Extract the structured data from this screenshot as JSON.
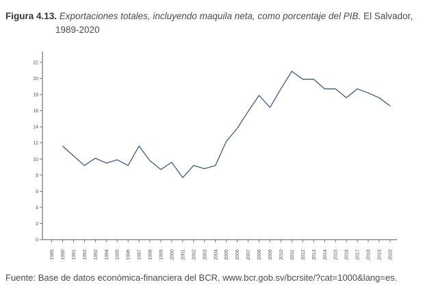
{
  "figure": {
    "label": "Figura 4.13.",
    "title_italic": "Exportaciones totales, incluyendo maquila neta, como porcentaje del PIB.",
    "title_rest": "El Salvador,",
    "title_years": "1989-2020"
  },
  "source": "Fuente: Base de datos económica-financiera del BCR, www.bcr.gob.sv/bcrsite/?cat=1000&lang=es.",
  "colors": {
    "line": "#3d5a80",
    "axis": "#555555"
  },
  "chart_data": {
    "type": "line",
    "title": "Exportaciones totales, incluyendo maquila neta, como porcentaje del PIB. El Salvador, 1989-2020",
    "xlabel": "",
    "ylabel": "",
    "ylim": [
      0,
      23
    ],
    "yticks": [
      0,
      2,
      4,
      6,
      8,
      10,
      12,
      14,
      16,
      18,
      20,
      22
    ],
    "x": [
      1989,
      1990,
      1991,
      1992,
      1993,
      1994,
      1995,
      1996,
      1997,
      1998,
      1999,
      2000,
      2001,
      2002,
      2003,
      2004,
      2005,
      2006,
      2007,
      2008,
      2009,
      2010,
      2011,
      2012,
      2013,
      2014,
      2015,
      2016,
      2017,
      2018,
      2019,
      2020
    ],
    "series": [
      {
        "name": "",
        "values": [
          null,
          11.6,
          10.4,
          9.2,
          10.1,
          9.5,
          9.9,
          9.2,
          11.6,
          9.8,
          8.7,
          9.6,
          7.7,
          9.2,
          8.8,
          9.2,
          12.2,
          13.8,
          15.9,
          17.9,
          16.4,
          18.7,
          20.9,
          19.9,
          19.9,
          18.7,
          18.7,
          17.6,
          18.7,
          18.2,
          17.6,
          16.6
        ]
      }
    ],
    "grid": false,
    "legend": "none"
  }
}
